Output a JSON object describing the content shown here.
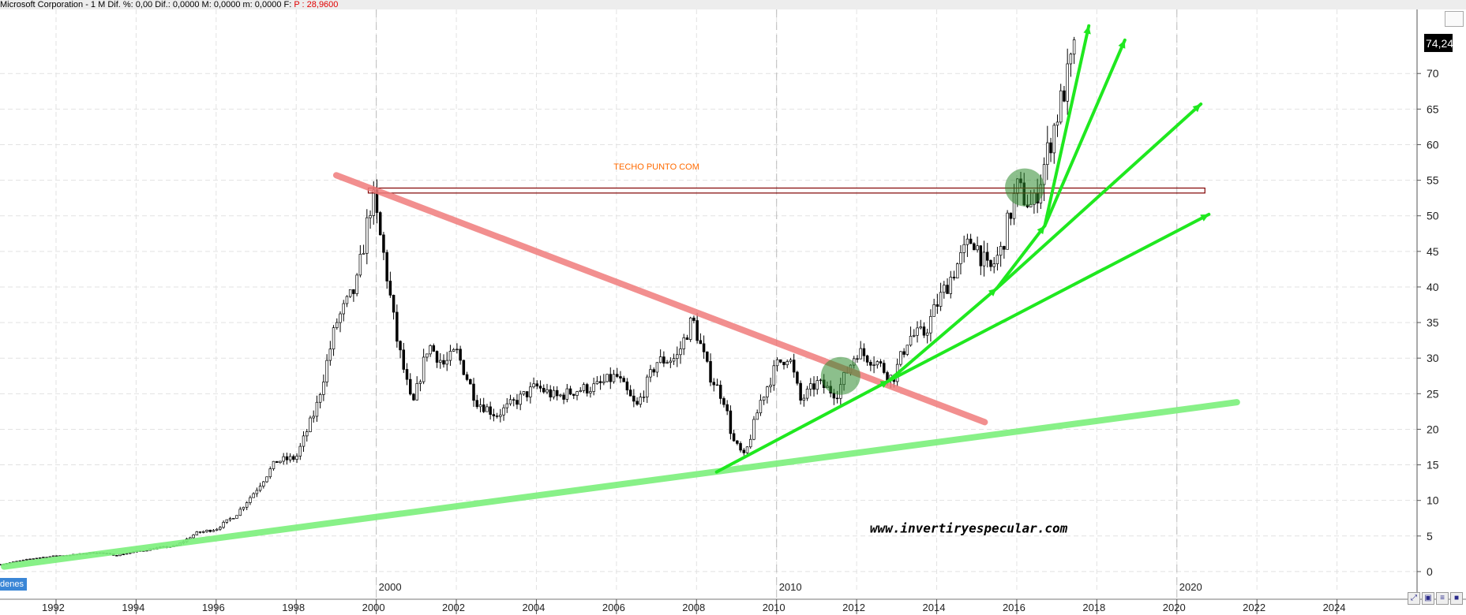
{
  "header": {
    "title": "Microsoft Corporation -  1 M  Dif. %: 0,00  Dif.: 0,0000  M: 0,0000  m: 0,0000  F:",
    "last_label": "P : 28,9600"
  },
  "legend_tag": "denes",
  "colors": {
    "resistance": "#800000",
    "downtrend": "#f07c7c",
    "long_support": "#7cf07c",
    "fan": "#1fe81f",
    "circle": "#2e8b2e",
    "annotation": "#ff6a00",
    "candle": "#000000"
  },
  "chart_data": {
    "type": "candlestick",
    "title": "",
    "xlabel": "",
    "ylabel": "",
    "ylim": [
      -3,
      79
    ],
    "xlim": [
      1990.6,
      2026.0
    ],
    "yticks": [
      0,
      5,
      10,
      15,
      20,
      25,
      30,
      35,
      40,
      45,
      50,
      55,
      60,
      65,
      70
    ],
    "ytick_labels": [
      "0",
      "5",
      "10",
      "15",
      "20",
      "25",
      "30",
      "35",
      "40",
      "45",
      "50",
      "55",
      "60",
      "65",
      "70"
    ],
    "xticks": [
      1992,
      1994,
      1996,
      1998,
      2000,
      2002,
      2004,
      2006,
      2008,
      2010,
      2012,
      2014,
      2016,
      2018,
      2020,
      2022,
      2024
    ],
    "xtick_labels": [
      "1992",
      "1994",
      "1996",
      "1998",
      "2000",
      "2002",
      "2004",
      "2006",
      "2008",
      "2010",
      "2012",
      "2014",
      "2016",
      "2018",
      "2020",
      "2022",
      "2024"
    ],
    "decade_labels": [
      {
        "x": 2000,
        "label": "2000"
      },
      {
        "x": 2010,
        "label": "2010"
      },
      {
        "x": 2020,
        "label": "2020"
      }
    ],
    "grid": true,
    "last_value_label": "74,24",
    "annotations": [
      {
        "text": "TECHO PUNTO COM",
        "x": 2007.0,
        "y": 56.5
      },
      {
        "text": "www.invertiryespecular.com",
        "x": 2014.8,
        "y": 5.5
      }
    ],
    "price_path": [
      {
        "x": 1990.6,
        "y": 1.0
      },
      {
        "x": 1991.0,
        "y": 1.4
      },
      {
        "x": 1991.5,
        "y": 1.9
      },
      {
        "x": 1992.0,
        "y": 2.2
      },
      {
        "x": 1992.5,
        "y": 2.4
      },
      {
        "x": 1993.0,
        "y": 2.7
      },
      {
        "x": 1993.5,
        "y": 2.3
      },
      {
        "x": 1994.0,
        "y": 2.8
      },
      {
        "x": 1994.5,
        "y": 3.3
      },
      {
        "x": 1995.0,
        "y": 3.6
      },
      {
        "x": 1995.5,
        "y": 5.4
      },
      {
        "x": 1996.0,
        "y": 6.0
      },
      {
        "x": 1996.5,
        "y": 8.0
      },
      {
        "x": 1997.0,
        "y": 11.5
      },
      {
        "x": 1997.5,
        "y": 15.5
      },
      {
        "x": 1998.0,
        "y": 16.0
      },
      {
        "x": 1998.5,
        "y": 23.0
      },
      {
        "x": 1999.0,
        "y": 35.0
      },
      {
        "x": 1999.5,
        "y": 40.0
      },
      {
        "x": 1999.9,
        "y": 53.0
      },
      {
        "x": 2000.2,
        "y": 44.0
      },
      {
        "x": 2000.5,
        "y": 33.0
      },
      {
        "x": 2000.9,
        "y": 23.0
      },
      {
        "x": 2001.3,
        "y": 32.0
      },
      {
        "x": 2001.7,
        "y": 29.0
      },
      {
        "x": 2002.0,
        "y": 31.0
      },
      {
        "x": 2002.5,
        "y": 24.0
      },
      {
        "x": 2003.0,
        "y": 22.0
      },
      {
        "x": 2003.5,
        "y": 24.0
      },
      {
        "x": 2004.0,
        "y": 26.0
      },
      {
        "x": 2004.5,
        "y": 24.5
      },
      {
        "x": 2005.0,
        "y": 25.5
      },
      {
        "x": 2005.5,
        "y": 26.0
      },
      {
        "x": 2006.0,
        "y": 27.5
      },
      {
        "x": 2006.5,
        "y": 23.0
      },
      {
        "x": 2007.0,
        "y": 29.5
      },
      {
        "x": 2007.5,
        "y": 30.0
      },
      {
        "x": 2007.9,
        "y": 35.5
      },
      {
        "x": 2008.3,
        "y": 28.0
      },
      {
        "x": 2008.7,
        "y": 24.0
      },
      {
        "x": 2008.9,
        "y": 18.5
      },
      {
        "x": 2009.2,
        "y": 16.0
      },
      {
        "x": 2009.6,
        "y": 24.0
      },
      {
        "x": 2010.0,
        "y": 29.0
      },
      {
        "x": 2010.3,
        "y": 30.5
      },
      {
        "x": 2010.6,
        "y": 24.0
      },
      {
        "x": 2011.0,
        "y": 26.5
      },
      {
        "x": 2011.5,
        "y": 25.0
      },
      {
        "x": 2012.0,
        "y": 31.0
      },
      {
        "x": 2012.5,
        "y": 29.5
      },
      {
        "x": 2012.9,
        "y": 27.0
      },
      {
        "x": 2013.3,
        "y": 33.0
      },
      {
        "x": 2013.7,
        "y": 33.5
      },
      {
        "x": 2014.0,
        "y": 37.5
      },
      {
        "x": 2014.5,
        "y": 43.0
      },
      {
        "x": 2014.9,
        "y": 47.0
      },
      {
        "x": 2015.3,
        "y": 42.0
      },
      {
        "x": 2015.6,
        "y": 45.0
      },
      {
        "x": 2016.0,
        "y": 54.0
      },
      {
        "x": 2016.4,
        "y": 51.0
      },
      {
        "x": 2016.7,
        "y": 57.5
      },
      {
        "x": 2017.0,
        "y": 64.0
      },
      {
        "x": 2017.3,
        "y": 70.0
      },
      {
        "x": 2017.5,
        "y": 74.24
      }
    ],
    "drawings": [
      {
        "kind": "resistance_band",
        "x1": 1999.8,
        "x2": 2020.7,
        "y1": 53.2,
        "y2": 53.9
      },
      {
        "kind": "downtrend_line",
        "x1": 1999.0,
        "y1": 55.7,
        "x2": 2015.2,
        "y2": 21.0
      },
      {
        "kind": "long_support_line",
        "x1": 1990.7,
        "y1": 0.7,
        "x2": 2021.5,
        "y2": 23.8
      },
      {
        "kind": "fan_line",
        "x1": 2008.5,
        "y1": 14.0,
        "x2": 2012.8,
        "y2": 26.8
      },
      {
        "kind": "fan_line",
        "x1": 2012.8,
        "y1": 26.8,
        "x2": 2020.8,
        "y2": 50.2
      },
      {
        "kind": "fan_line",
        "x1": 2012.8,
        "y1": 26.8,
        "x2": 2015.5,
        "y2": 39.8
      },
      {
        "kind": "fan_line",
        "x1": 2015.5,
        "y1": 39.8,
        "x2": 2020.6,
        "y2": 65.7
      },
      {
        "kind": "fan_line",
        "x1": 2015.5,
        "y1": 39.8,
        "x2": 2016.7,
        "y2": 48.6
      },
      {
        "kind": "fan_line",
        "x1": 2016.7,
        "y1": 48.6,
        "x2": 2018.7,
        "y2": 74.7
      },
      {
        "kind": "fan_line",
        "x1": 2016.7,
        "y1": 48.6,
        "x2": 2017.8,
        "y2": 76.7
      },
      {
        "kind": "highlight_circle",
        "x": 2011.6,
        "y": 27.5
      },
      {
        "kind": "highlight_circle",
        "x": 2016.2,
        "y": 54.0
      }
    ]
  }
}
